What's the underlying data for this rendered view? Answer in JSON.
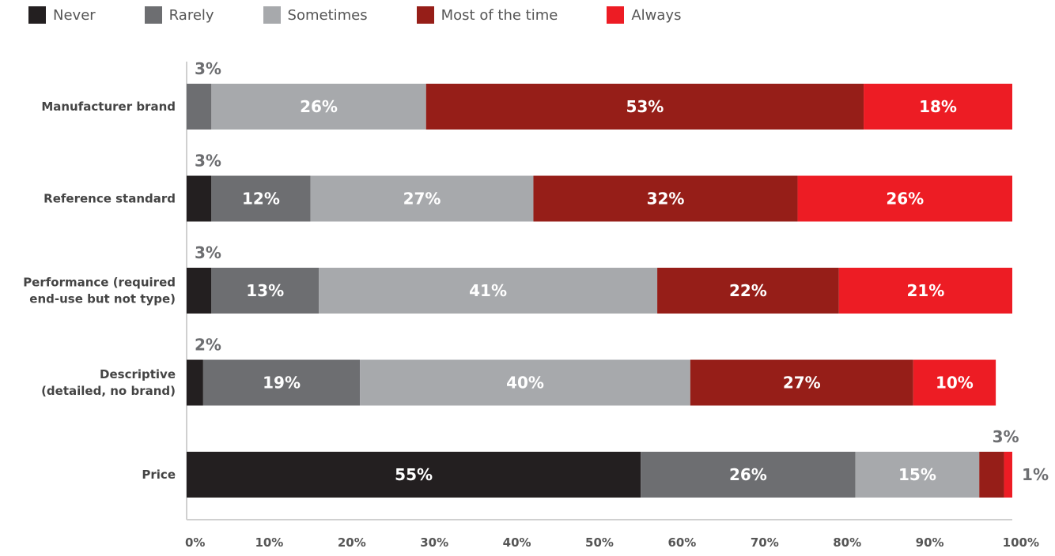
{
  "chart_data": {
    "type": "bar",
    "orientation": "horizontal",
    "stacked": true,
    "categories": [
      [
        "Manufacturer brand"
      ],
      [
        "Reference standard"
      ],
      [
        "Performance (required",
        "end-use but not type)"
      ],
      [
        "Descriptive",
        "(detailed, no brand)"
      ],
      [
        "Price"
      ]
    ],
    "series": [
      {
        "name": "Never",
        "color": "#231f20",
        "values": [
          0,
          3,
          3,
          2,
          55
        ]
      },
      {
        "name": "Rarely",
        "color": "#6d6e71",
        "values": [
          3,
          12,
          13,
          19,
          26
        ]
      },
      {
        "name": "Sometimes",
        "color": "#a7a9ac",
        "values": [
          26,
          27,
          41,
          40,
          15
        ]
      },
      {
        "name": "Most of the time",
        "color": "#961e18",
        "values": [
          53,
          32,
          22,
          27,
          3
        ]
      },
      {
        "name": "Always",
        "color": "#ed1c24",
        "values": [
          18,
          26,
          21,
          10,
          1
        ]
      }
    ],
    "data_labels": [
      [
        "",
        "3%",
        "26%",
        "53%",
        "18%"
      ],
      [
        "3%",
        "12%",
        "27%",
        "32%",
        "26%"
      ],
      [
        "3%",
        "13%",
        "41%",
        "22%",
        "21%"
      ],
      [
        "2%",
        "19%",
        "40%",
        "27%",
        "10%"
      ],
      [
        "55%",
        "26%",
        "15%",
        "3%",
        "1%"
      ]
    ],
    "x_ticks": [
      "0%",
      "10%",
      "20%",
      "30%",
      "40%",
      "50%",
      "60%",
      "70%",
      "80%",
      "90%",
      "100%"
    ],
    "xlim": [
      0,
      100
    ],
    "grid": false,
    "legend_position": "top-left",
    "title": "",
    "xlabel": "",
    "ylabel": ""
  }
}
